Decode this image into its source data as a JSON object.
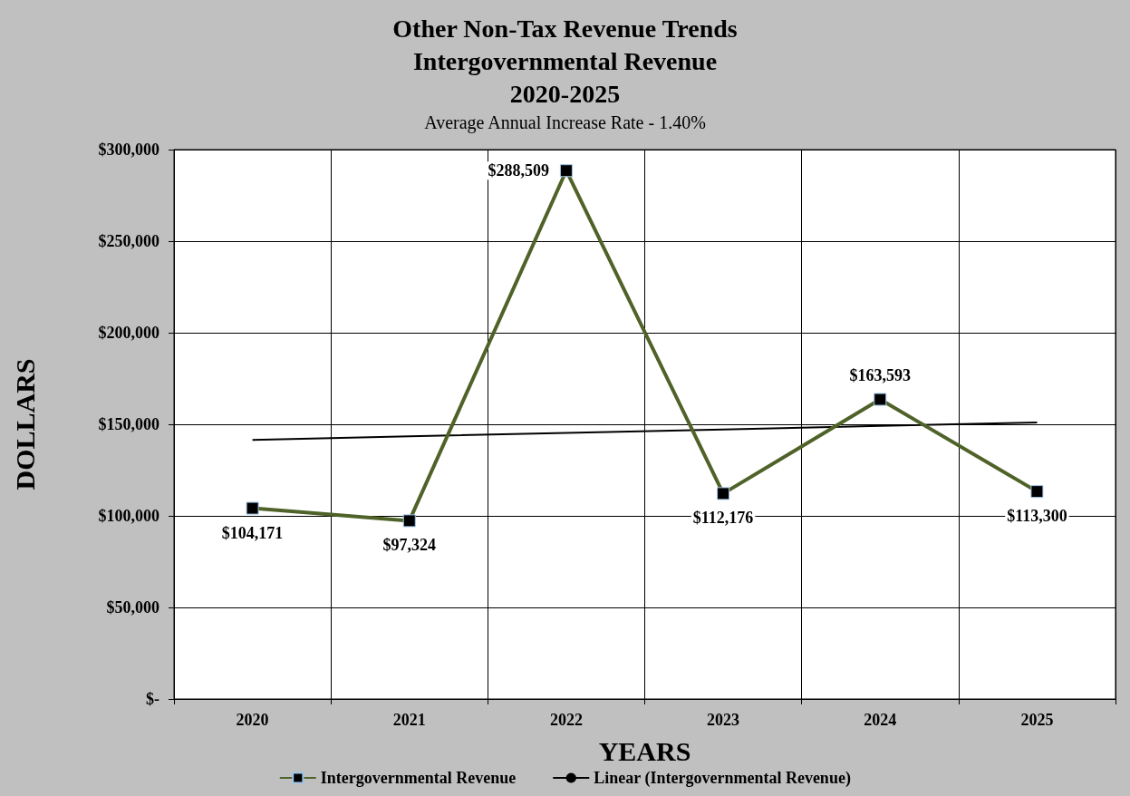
{
  "chart_data": {
    "type": "line",
    "title": "Other Non-Tax Revenue Trends\nIntergovernmental Revenue\n2020-2025",
    "subtitle": "Average Annual Increase Rate - 1.40%",
    "xlabel": "YEARS",
    "ylabel": "DOLLARS",
    "categories": [
      "2020",
      "2021",
      "2022",
      "2023",
      "2024",
      "2025"
    ],
    "series": [
      {
        "name": "Intergovernmental Revenue",
        "color": "#4f6228",
        "values": [
          104171,
          97324,
          288509,
          112176,
          163593,
          113300
        ],
        "value_labels": [
          "$104,171",
          "$97,324",
          "$288,509",
          "$112,176",
          "$163,593",
          "$113,300"
        ],
        "marker": "square"
      },
      {
        "name": "Linear (Intergovernmental Revenue)",
        "color": "#000000",
        "values": [
          141500,
          143400,
          145300,
          147200,
          149100,
          151000
        ],
        "marker": "none"
      }
    ],
    "ylim": [
      0,
      300000
    ],
    "yticks": [
      {
        "value": 0,
        "label": "$-"
      },
      {
        "value": 50000,
        "label": "$50,000"
      },
      {
        "value": 100000,
        "label": "$100,000"
      },
      {
        "value": 150000,
        "label": "$150,000"
      },
      {
        "value": 200000,
        "label": "$200,000"
      },
      {
        "value": 250000,
        "label": "$250,000"
      },
      {
        "value": 300000,
        "label": "$300,000"
      }
    ],
    "grid": true,
    "legend": "bottom"
  }
}
